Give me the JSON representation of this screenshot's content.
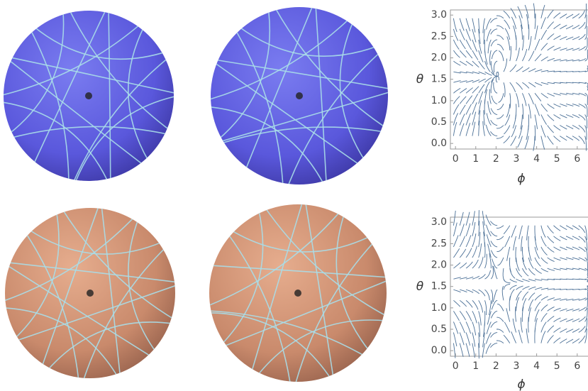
{
  "chart_data": [
    {
      "type": "streamplot",
      "xlabel": "ϕ",
      "ylabel": "θ",
      "xlim": [
        -0.25,
        6.53
      ],
      "ylim": [
        -0.13,
        3.12
      ],
      "xticks": [
        0,
        1,
        2,
        3,
        4,
        5,
        6
      ],
      "yticks": [
        {
          "value": 0,
          "label": "0.0"
        },
        {
          "value": 0.5,
          "label": "0.5"
        },
        {
          "value": 1,
          "label": "1.0"
        },
        {
          "value": 1.5,
          "label": "1.5"
        },
        {
          "value": 2,
          "label": "2.0"
        },
        {
          "value": 2.5,
          "label": "2.5"
        },
        {
          "value": 3,
          "label": "3.0"
        }
      ]
    },
    {
      "type": "streamplot",
      "xlabel": "ϕ",
      "ylabel": "θ",
      "xlim": [
        -0.25,
        6.53
      ],
      "ylim": [
        -0.13,
        3.12
      ],
      "xticks": [
        0,
        1,
        2,
        3,
        4,
        5,
        6
      ],
      "yticks": [
        {
          "value": 0,
          "label": "0.0"
        },
        {
          "value": 0.5,
          "label": "0.5"
        },
        {
          "value": 1,
          "label": "1.0"
        },
        {
          "value": 1.5,
          "label": "1.5"
        },
        {
          "value": 2,
          "label": "2.0"
        },
        {
          "value": 2.5,
          "label": "2.5"
        },
        {
          "value": 3,
          "label": "3.0"
        }
      ]
    }
  ]
}
